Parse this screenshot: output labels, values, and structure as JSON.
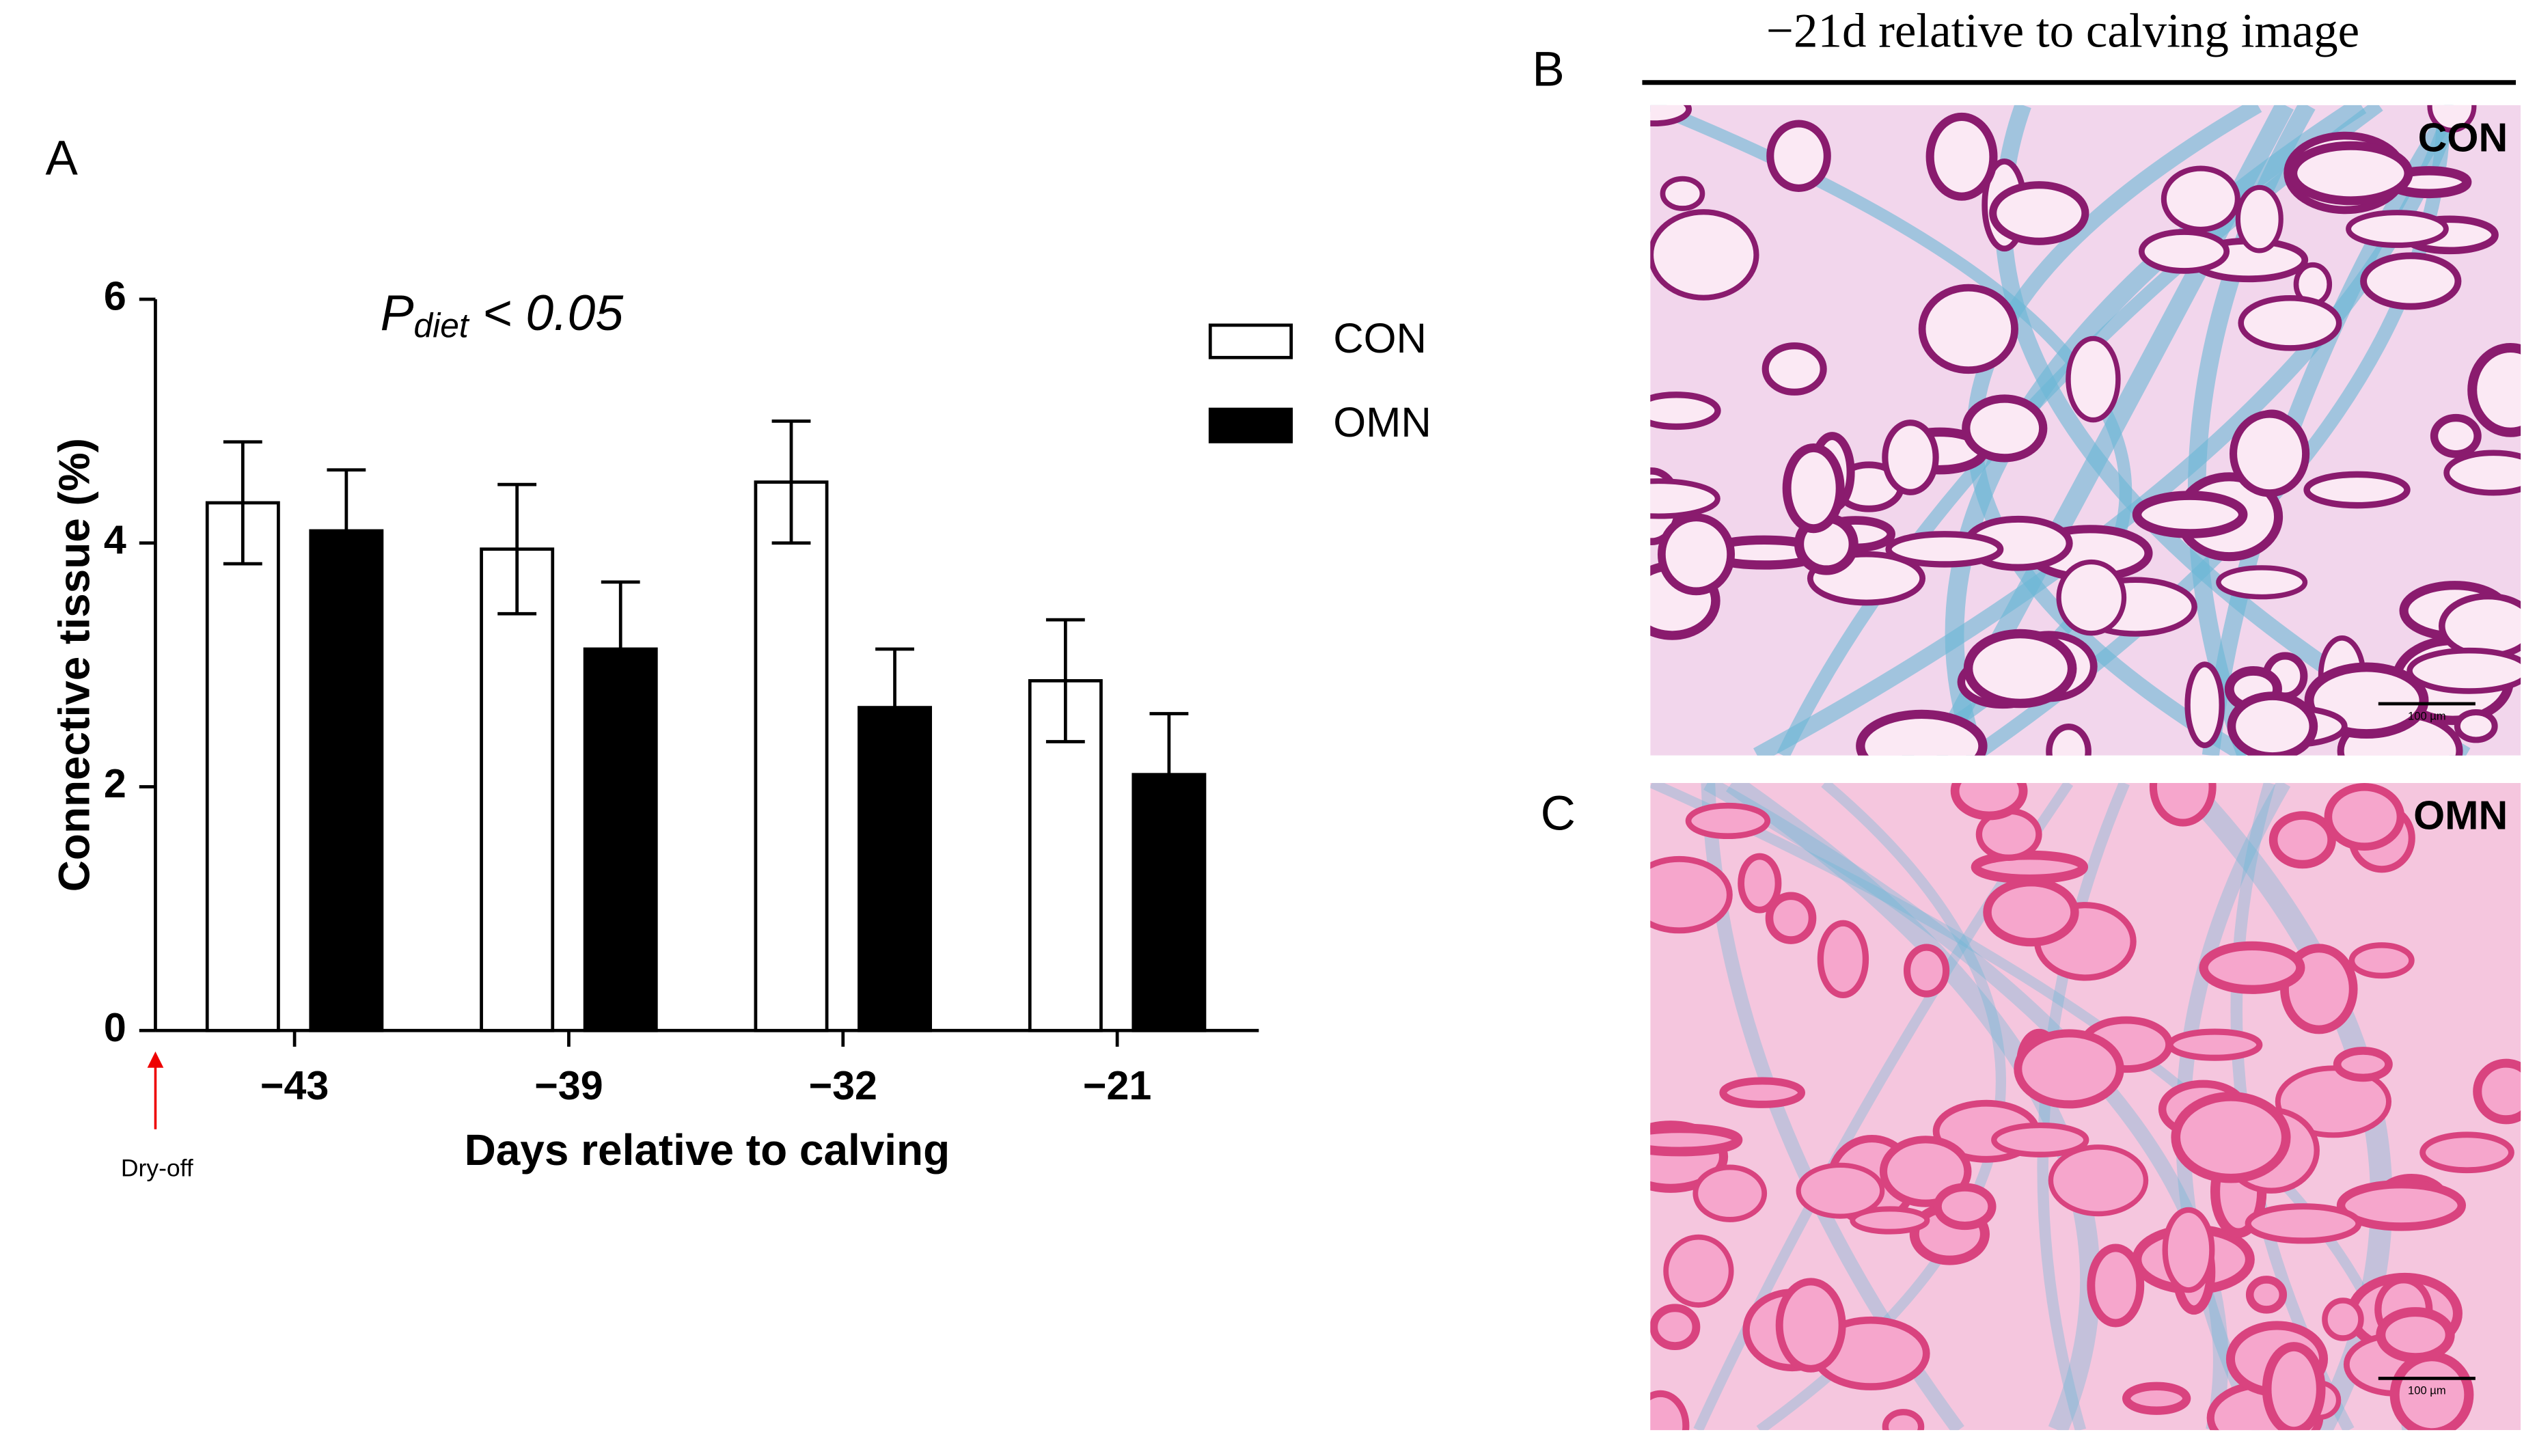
{
  "chart_data": {
    "type": "bar",
    "panel_label": "A",
    "categories": [
      "−43",
      "−39",
      "−32",
      "−21"
    ],
    "series": [
      {
        "name": "CON",
        "color": "#ffffff",
        "values": [
          4.33,
          3.95,
          4.5,
          2.87
        ],
        "errors": [
          0.5,
          0.53,
          0.5,
          0.5
        ]
      },
      {
        "name": "OMN",
        "color": "#000000",
        "values": [
          4.1,
          3.13,
          2.65,
          2.1
        ],
        "errors": [
          0.5,
          0.55,
          0.48,
          0.5
        ]
      }
    ],
    "ylim": [
      0,
      6
    ],
    "yticks": [
      0,
      2,
      4,
      6
    ],
    "xlabel": "Days relative to calving",
    "ylabel": "Connective tissue (%)",
    "annotation": {
      "symbol": "P",
      "subscript": "diet",
      "text": " < 0.05"
    },
    "marker_label": "Dry-off",
    "legend": "top-right"
  },
  "images": {
    "header": "−21d relative to calving image",
    "panels": [
      {
        "label": "B",
        "tag": "CON",
        "scale_bar": "100 µm"
      },
      {
        "label": "C",
        "tag": "OMN",
        "scale_bar": "100 µm"
      }
    ]
  }
}
